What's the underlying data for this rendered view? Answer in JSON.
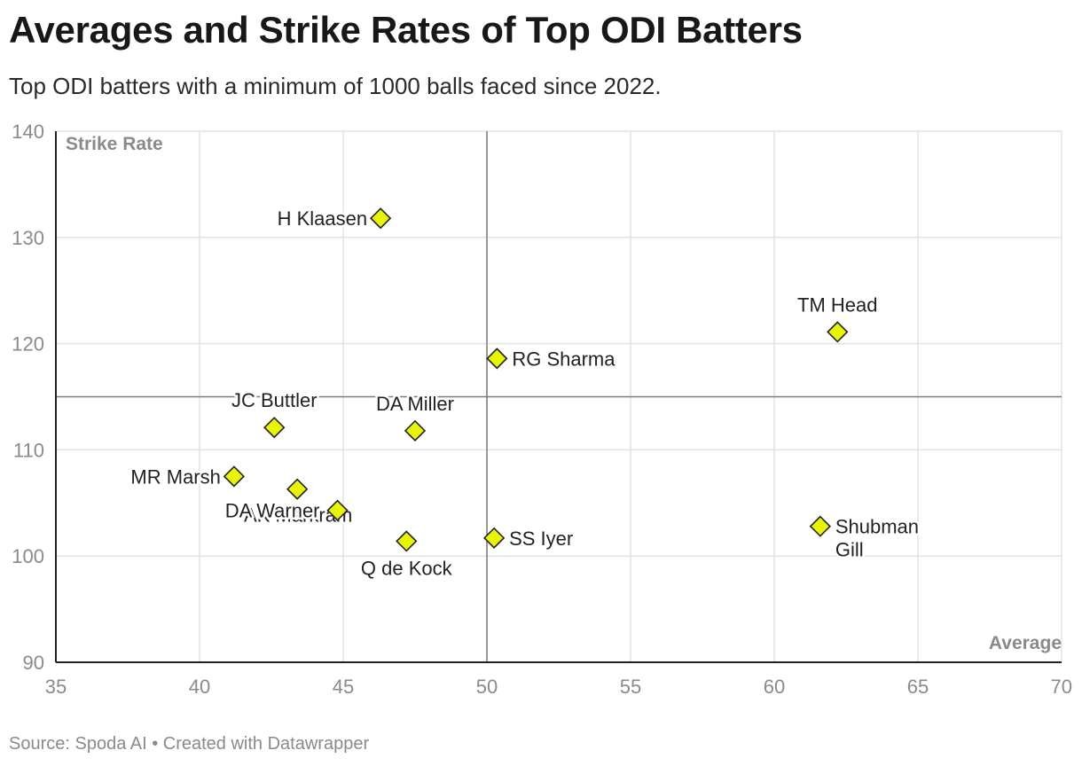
{
  "header": {
    "title": "Averages and Strike Rates of Top ODI Batters",
    "subtitle": "Top ODI batters with a minimum of 1000 balls faced since 2022."
  },
  "footer": {
    "source": "Source: Spoda AI • Created with Datawrapper"
  },
  "colors": {
    "marker_fill": "#e8f500",
    "marker_stroke": "#222222",
    "grid": "#e2e2e2",
    "reference": "#7a7a7a"
  },
  "chart_data": {
    "type": "scatter",
    "xlabel": "Average",
    "ylabel": "Strike Rate",
    "xlim": [
      35,
      70
    ],
    "ylim": [
      90,
      140
    ],
    "xticks": [
      35,
      40,
      45,
      50,
      55,
      60,
      65,
      70
    ],
    "yticks": [
      90,
      100,
      110,
      120,
      130,
      140
    ],
    "reference_lines": {
      "x": 50,
      "y": 115
    },
    "points": [
      {
        "name": "H Klaasen",
        "x": 46.3,
        "y": 131.8,
        "label_pos": "left"
      },
      {
        "name": "TM Head",
        "x": 62.2,
        "y": 121.1,
        "label_pos": "top"
      },
      {
        "name": "RG Sharma",
        "x": 50.35,
        "y": 118.6,
        "label_pos": "right"
      },
      {
        "name": "JC Buttler",
        "x": 42.6,
        "y": 112.1,
        "label_pos": "top"
      },
      {
        "name": "DA Miller",
        "x": 47.5,
        "y": 111.8,
        "label_pos": "top"
      },
      {
        "name": "MR Marsh",
        "x": 41.2,
        "y": 107.5,
        "label_pos": "left"
      },
      {
        "name": "AK Markram",
        "x": 43.4,
        "y": 106.3,
        "label_pos": "below-right"
      },
      {
        "name": "DA Warner",
        "x": 44.8,
        "y": 104.3,
        "label_pos": "below-left"
      },
      {
        "name": "Q de Kock",
        "x": 47.2,
        "y": 101.4,
        "label_pos": "bottom"
      },
      {
        "name": "SS Iyer",
        "x": 50.25,
        "y": 101.7,
        "label_pos": "right"
      },
      {
        "name": "Shubman Gill",
        "x": 61.6,
        "y": 102.8,
        "label_pos": "right-wrap"
      }
    ]
  }
}
